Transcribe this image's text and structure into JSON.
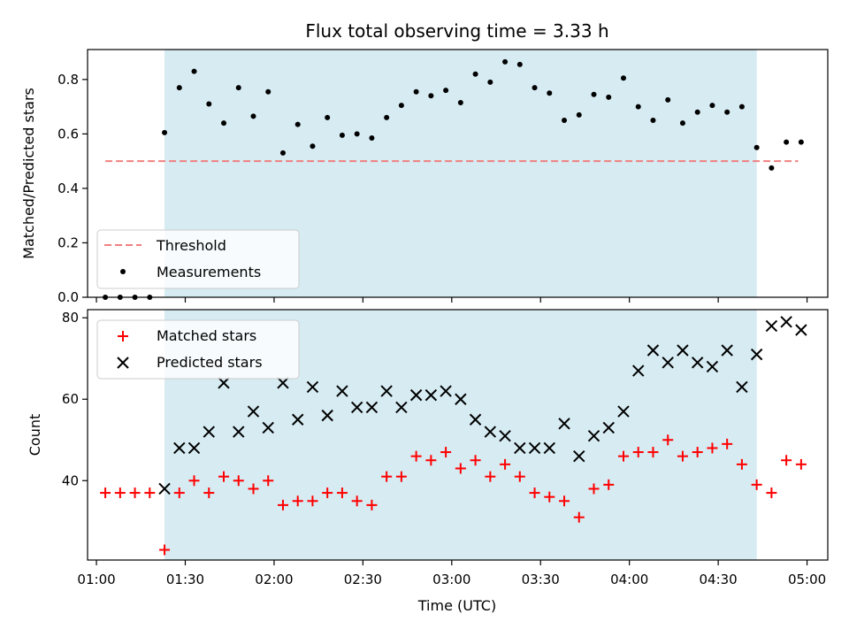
{
  "chart_data": [
    {
      "type": "scatter",
      "title": "Flux total observing time = 3.33 h",
      "xlabel": "",
      "ylabel": "Matched/Predicted stars",
      "ylim": [
        0,
        0.91
      ],
      "yticks": [
        "0.0",
        "0.2",
        "0.4",
        "0.6",
        "0.8"
      ],
      "ytick_values": [
        0,
        0.2,
        0.4,
        0.6,
        0.8
      ],
      "legend_position": "lower-left",
      "shaded_span": [
        "01:23",
        "04:43"
      ],
      "shade_color": "#add8e6",
      "threshold": {
        "name": "Threshold",
        "value": 0.5,
        "x_range": [
          "01:03",
          "04:57"
        ],
        "color": "#f08080"
      },
      "series": [
        {
          "name": "Measurements",
          "color": "#000000",
          "x": [
            "01:03",
            "01:08",
            "01:13",
            "01:18",
            "01:23",
            "01:28",
            "01:33",
            "01:38",
            "01:43",
            "01:48",
            "01:53",
            "01:58",
            "02:03",
            "02:08",
            "02:13",
            "02:18",
            "02:23",
            "02:28",
            "02:33",
            "02:38",
            "02:43",
            "02:48",
            "02:53",
            "02:58",
            "03:03",
            "03:08",
            "03:13",
            "03:18",
            "03:23",
            "03:28",
            "03:33",
            "03:38",
            "03:43",
            "03:48",
            "03:53",
            "03:58",
            "04:03",
            "04:08",
            "04:13",
            "04:18",
            "04:23",
            "04:28",
            "04:33",
            "04:38",
            "04:43",
            "04:48",
            "04:53",
            "04:58"
          ],
          "y": [
            0,
            0,
            0,
            0,
            0.605,
            0.77,
            0.83,
            0.71,
            0.64,
            0.77,
            0.665,
            0.755,
            0.53,
            0.635,
            0.555,
            0.66,
            0.595,
            0.6,
            0.585,
            0.66,
            0.705,
            0.755,
            0.74,
            0.76,
            0.715,
            0.82,
            0.79,
            0.865,
            0.855,
            0.77,
            0.75,
            0.65,
            0.67,
            0.745,
            0.735,
            0.805,
            0.7,
            0.65,
            0.725,
            0.64,
            0.68,
            0.705,
            0.68,
            0.7,
            0.55,
            0.475,
            0.57,
            0.57
          ]
        }
      ]
    },
    {
      "type": "scatter",
      "title": "",
      "xlabel": "Time (UTC)",
      "ylabel": "Count",
      "ylim": [
        20.5,
        82
      ],
      "yticks": [
        "40",
        "60",
        "80"
      ],
      "ytick_values": [
        40,
        60,
        80
      ],
      "xlim": [
        "00:57",
        "05:07"
      ],
      "xticks": [
        "01:00",
        "01:30",
        "02:00",
        "02:30",
        "03:00",
        "03:30",
        "04:00",
        "04:30",
        "05:00"
      ],
      "legend_position": "upper-left",
      "shaded_span": [
        "01:23",
        "04:43"
      ],
      "shade_color": "#add8e6",
      "series": [
        {
          "name": "Matched stars",
          "marker": "plus",
          "color": "#ff0000",
          "x": [
            "01:03",
            "01:08",
            "01:13",
            "01:18",
            "01:23",
            "01:28",
            "01:33",
            "01:38",
            "01:43",
            "01:48",
            "01:53",
            "01:58",
            "02:03",
            "02:08",
            "02:13",
            "02:18",
            "02:23",
            "02:28",
            "02:33",
            "02:38",
            "02:43",
            "02:48",
            "02:53",
            "02:58",
            "03:03",
            "03:08",
            "03:13",
            "03:18",
            "03:23",
            "03:28",
            "03:33",
            "03:38",
            "03:43",
            "03:48",
            "03:53",
            "03:58",
            "04:03",
            "04:08",
            "04:13",
            "04:18",
            "04:23",
            "04:28",
            "04:33",
            "04:38",
            "04:43",
            "04:48",
            "04:53",
            "04:58"
          ],
          "y": [
            37,
            37,
            37,
            37,
            23,
            37,
            40,
            37,
            41,
            40,
            38,
            40,
            34,
            35,
            35,
            37,
            37,
            35,
            34,
            41,
            41,
            46,
            45,
            47,
            43,
            45,
            41,
            44,
            41,
            37,
            36,
            35,
            31,
            38,
            39,
            46,
            47,
            47,
            50,
            46,
            47,
            48,
            49,
            44,
            39,
            37,
            45,
            44
          ]
        },
        {
          "name": "Predicted stars",
          "marker": "x",
          "color": "#000000",
          "x": [
            "01:23",
            "01:28",
            "01:33",
            "01:38",
            "01:43",
            "01:48",
            "01:53",
            "01:58",
            "02:03",
            "02:08",
            "02:13",
            "02:18",
            "02:23",
            "02:28",
            "02:33",
            "02:38",
            "02:43",
            "02:48",
            "02:53",
            "02:58",
            "03:03",
            "03:08",
            "03:13",
            "03:18",
            "03:23",
            "03:28",
            "03:33",
            "03:38",
            "03:43",
            "03:48",
            "03:53",
            "03:58",
            "04:03",
            "04:08",
            "04:13",
            "04:18",
            "04:23",
            "04:28",
            "04:33",
            "04:38",
            "04:43",
            "04:48",
            "04:53",
            "04:58"
          ],
          "y": [
            38,
            48,
            48,
            52,
            64,
            52,
            57,
            53,
            64,
            55,
            63,
            56,
            62,
            58,
            58,
            62,
            58,
            61,
            61,
            62,
            60,
            55,
            52,
            51,
            48,
            48,
            48,
            54,
            46,
            51,
            53,
            57,
            67,
            72,
            69,
            72,
            69,
            68,
            72,
            63,
            71,
            78,
            79,
            77
          ]
        }
      ]
    }
  ]
}
